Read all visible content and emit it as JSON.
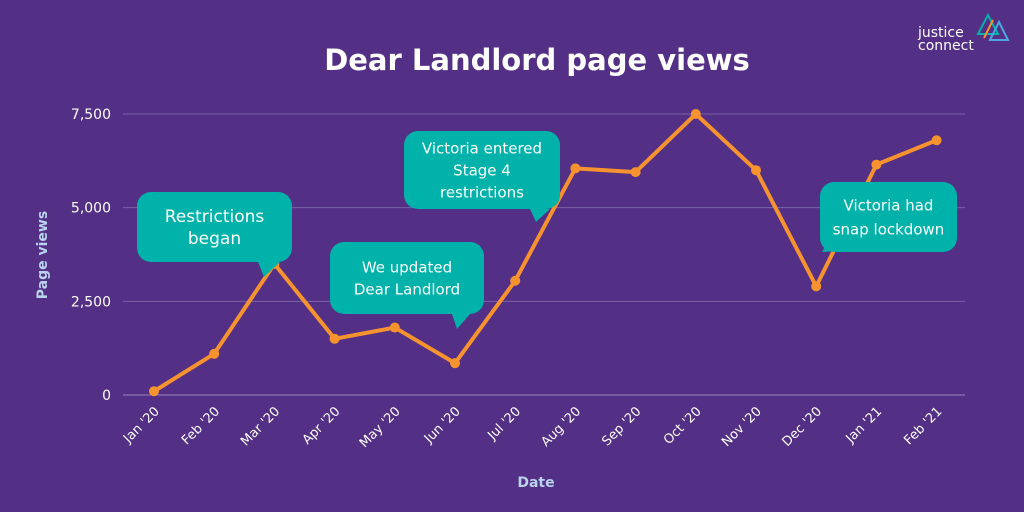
{
  "chart_data": {
    "type": "line",
    "title": "Dear Landlord page views",
    "xlabel": "Date",
    "ylabel": "Page views",
    "categories": [
      "Jan '20",
      "Feb '20",
      "Mar '20",
      "Apr '20",
      "May '20",
      "Jun '20",
      "Jul '20",
      "Aug '20",
      "Sep '20",
      "Oct '20",
      "Nov '20",
      "Dec '20",
      "Jan '21",
      "Feb '21"
    ],
    "series": [
      {
        "values": [
          100,
          1100,
          3500,
          1500,
          1800,
          850,
          3050,
          6050,
          5950,
          7500,
          6000,
          2900,
          6150,
          6800
        ]
      }
    ],
    "yticks": [
      0,
      2500,
      5000,
      7500
    ],
    "ytick_labels": [
      "0",
      "2,500",
      "5,000",
      "7,500"
    ],
    "ylim": [
      0,
      7500
    ],
    "grid": true,
    "line_color": "#f7932f",
    "background_color": "#532f85",
    "annotations": [
      {
        "lines": [
          "Restrictions",
          "began"
        ],
        "category": "Mar '20"
      },
      {
        "lines": [
          "We updated",
          "Dear Landlord"
        ],
        "category": "Jun '20"
      },
      {
        "lines": [
          "Victoria entered",
          "Stage 4",
          "restrictions"
        ],
        "category": "Aug '20"
      },
      {
        "lines": [
          "Victoria had",
          "snap lockdown"
        ],
        "category": "Dec '20"
      }
    ],
    "callout_color": "#00b2a9"
  },
  "logo": {
    "line1": "justice",
    "line2": "connect"
  }
}
